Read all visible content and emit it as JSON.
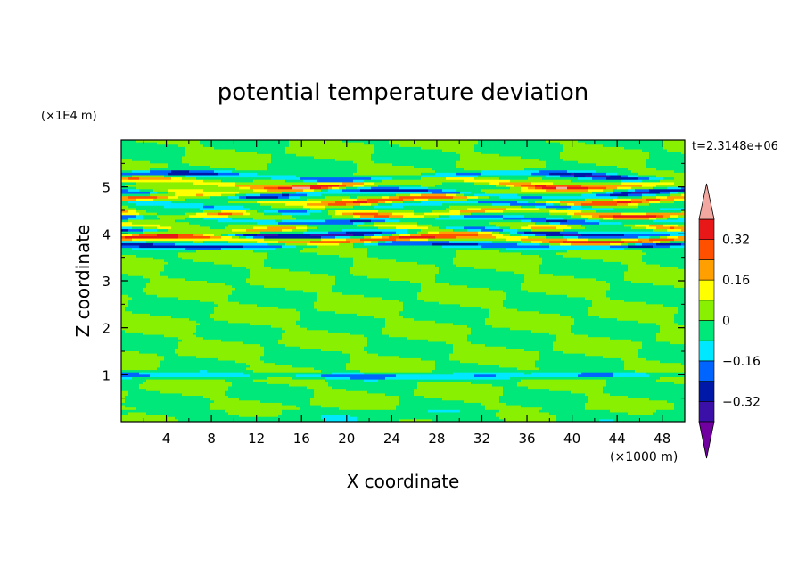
{
  "chart_data": {
    "type": "heatmap",
    "title": "potential temperature deviation",
    "xlabel": "X coordinate",
    "ylabel": "Z coordinate",
    "x_unit_label": "(×1000 m)",
    "y_unit_label": "(×1E4 m)",
    "time_label": "t=2.3148e+06",
    "xlim": [
      0,
      50
    ],
    "ylim": [
      0,
      6
    ],
    "x_ticks": [
      4,
      8,
      12,
      16,
      20,
      24,
      28,
      32,
      36,
      40,
      44,
      48
    ],
    "y_ticks": [
      1,
      2,
      3,
      4,
      5
    ],
    "colorbar": {
      "levels": [
        -0.4,
        -0.32,
        -0.24,
        -0.16,
        -0.08,
        0,
        0.08,
        0.16,
        0.24,
        0.32,
        0.4
      ],
      "labeled_levels": [
        {
          "value": 0.32,
          "label": "0.32"
        },
        {
          "value": 0.16,
          "label": "0.16"
        },
        {
          "value": 0,
          "label": "0"
        },
        {
          "value": -0.16,
          "label": "−0.16"
        },
        {
          "value": -0.32,
          "label": "−0.32"
        }
      ],
      "colors": [
        "#7000a0",
        "#3a10a8",
        "#0018a8",
        "#0064ff",
        "#00e8ff",
        "#00e87a",
        "#88f000",
        "#ffff00",
        "#ffa000",
        "#ff5000",
        "#e81818",
        "#f2a8a0"
      ],
      "extend": "both"
    },
    "field_description": "Near-zero background (green) below z≈3.7; strong layered oscillations between z≈3.7 and z≈5.3",
    "field_bands": [
      {
        "z_center": 5.22,
        "value": -0.3,
        "amp": 0.08,
        "wavelength": 30,
        "phase": 0.5
      },
      {
        "z_center": 5.08,
        "value": 0.3,
        "amp": 0.1,
        "wavelength": 26,
        "phase": 1.2
      },
      {
        "z_center": 4.94,
        "value": 0.1,
        "amp": 0.08,
        "wavelength": 22,
        "phase": 2.0
      },
      {
        "z_center": 4.85,
        "value": -0.35,
        "amp": 0.09,
        "wavelength": 28,
        "phase": 2.6
      },
      {
        "z_center": 4.72,
        "value": 0.35,
        "amp": 0.08,
        "wavelength": 24,
        "phase": 0.2
      },
      {
        "z_center": 4.58,
        "value": -0.25,
        "amp": 0.1,
        "wavelength": 32,
        "phase": 1.7
      },
      {
        "z_center": 4.45,
        "value": 0.3,
        "amp": 0.08,
        "wavelength": 20,
        "phase": 3.1
      },
      {
        "z_center": 4.3,
        "value": -0.3,
        "amp": 0.08,
        "wavelength": 27,
        "phase": 0.9
      },
      {
        "z_center": 4.12,
        "value": 0.25,
        "amp": 0.09,
        "wavelength": 23,
        "phase": 2.3
      },
      {
        "z_center": 4.02,
        "value": -0.38,
        "amp": 0.07,
        "wavelength": 29,
        "phase": 1.4
      },
      {
        "z_center": 3.88,
        "value": 0.38,
        "amp": 0.07,
        "wavelength": 25,
        "phase": 0.4
      },
      {
        "z_center": 3.76,
        "value": -0.3,
        "amp": 0.05,
        "wavelength": 31,
        "phase": 2.9
      },
      {
        "z_center": 0.98,
        "value": -0.2,
        "amp": 0.02,
        "wavelength": 40,
        "phase": 0.7
      }
    ]
  }
}
